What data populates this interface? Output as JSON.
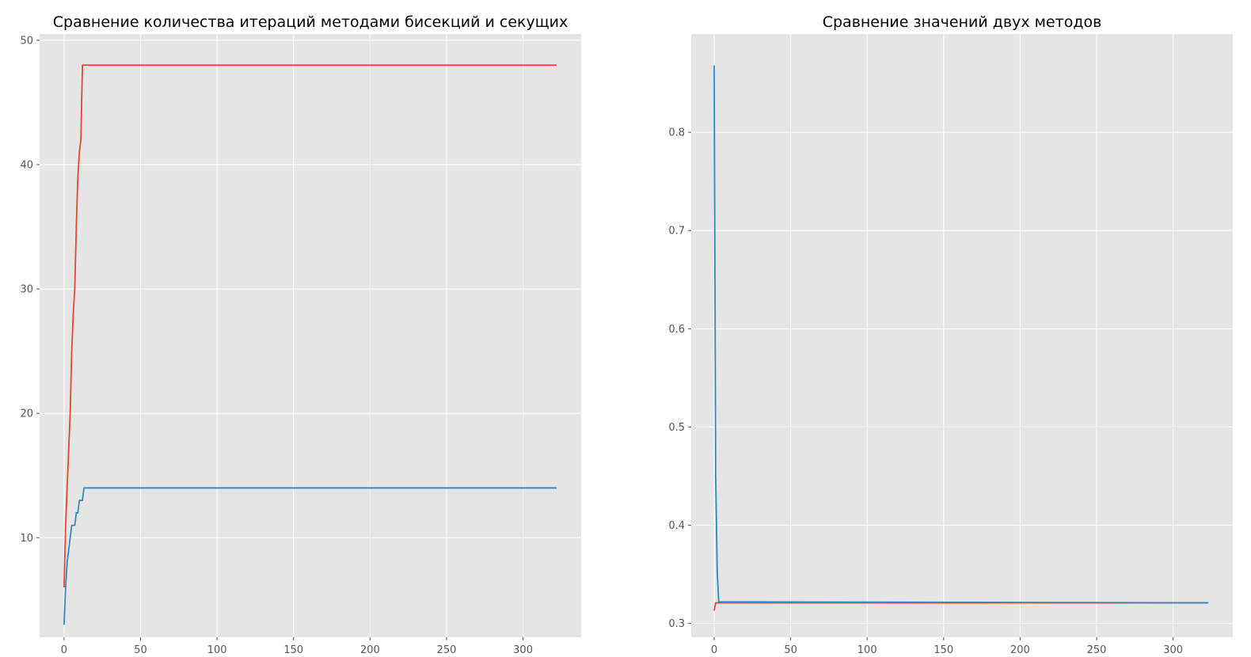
{
  "chart_data": [
    {
      "type": "line",
      "title": "Сравнение количества итераций методами бисекций и секущих",
      "xlabel": "",
      "ylabel": "",
      "xlim": [
        -16,
        338
      ],
      "ylim": [
        2.0,
        50.5
      ],
      "xticks": [
        0,
        50,
        100,
        150,
        200,
        250,
        300
      ],
      "yticks": [
        10,
        20,
        30,
        40,
        50
      ],
      "grid": true,
      "series": [
        {
          "color": "#e24a33",
          "x": [
            0,
            1,
            2,
            3,
            4,
            5,
            6,
            7,
            8,
            9,
            10,
            11,
            12,
            322
          ],
          "y": [
            6,
            11,
            14,
            17,
            20,
            25,
            28,
            30,
            35,
            39,
            41,
            42,
            48,
            48
          ]
        },
        {
          "color": "#348abd",
          "x": [
            0,
            1,
            2,
            3,
            4,
            5,
            6,
            7,
            8,
            9,
            10,
            11,
            12,
            13,
            322
          ],
          "y": [
            3,
            6,
            8,
            9,
            10,
            11,
            11,
            11,
            12,
            12,
            13,
            13,
            13,
            14,
            14
          ]
        }
      ]
    },
    {
      "type": "line",
      "title": "Сравнение значений двух методов",
      "xlabel": "",
      "ylabel": "",
      "xlim": [
        -15,
        339
      ],
      "ylim": [
        0.286,
        0.9
      ],
      "xticks": [
        0,
        50,
        100,
        150,
        200,
        250,
        300
      ],
      "yticks": [
        0.3,
        0.4,
        0.5,
        0.6,
        0.7,
        0.8
      ],
      "ytick_decimals": 1,
      "grid": true,
      "series": [
        {
          "color": "#e24a33",
          "x": [
            0,
            1,
            2,
            3,
            323
          ],
          "y": [
            0.313,
            0.321,
            0.321,
            0.321,
            0.321
          ]
        },
        {
          "color": "#348abd",
          "x": [
            0,
            1,
            2,
            3,
            323
          ],
          "y": [
            0.868,
            0.45,
            0.352,
            0.322,
            0.321
          ]
        }
      ]
    }
  ]
}
